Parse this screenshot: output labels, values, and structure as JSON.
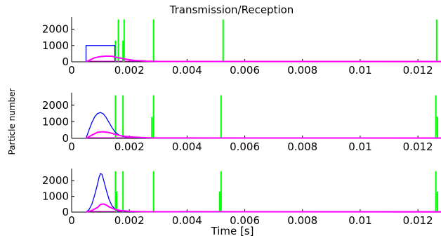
{
  "title": "Transmission/Reception",
  "xlabel": "Time [s]",
  "ylabel": "Particle number",
  "colors": {
    "blue": "#0000ff",
    "magenta": "#ff00ff",
    "green": "#00ff00",
    "axis": "#000000"
  },
  "chart_data": [
    {
      "type": "line",
      "xlim": [
        0,
        0.0128
      ],
      "ylim": [
        0,
        2500
      ],
      "xticks": [
        0,
        0.002,
        0.004,
        0.006,
        0.008,
        0.01,
        0.012
      ],
      "xtick_labels": [
        "0",
        "0.002",
        "0.004",
        "0.006",
        "0.008",
        "0.01",
        "0.012"
      ],
      "yticks": [
        0,
        1000,
        2000
      ],
      "ytick_labels": [
        "0",
        "1000",
        "2000"
      ],
      "series": [
        {
          "color": "#0000ff",
          "x": [
            0.0005,
            0.0005,
            0.0015,
            0.0015
          ],
          "y": [
            0,
            1000,
            1000,
            0
          ]
        },
        {
          "color": "#ff00ff",
          "x": [
            0.0005,
            0.0008,
            0.001,
            0.0012,
            0.0014,
            0.0016,
            0.0019,
            0.0022,
            0.0026,
            0.003,
            0.0128
          ],
          "y": [
            0,
            250,
            320,
            350,
            340,
            260,
            150,
            80,
            40,
            20,
            15
          ]
        }
      ],
      "spikes": [
        {
          "x": 0.00152,
          "height": 1300
        },
        {
          "x": 0.00162,
          "height": 2600
        },
        {
          "x": 0.00178,
          "height": 1300
        },
        {
          "x": 0.00182,
          "height": 2600
        },
        {
          "x": 0.00284,
          "height": 2600
        },
        {
          "x": 0.00525,
          "height": 2600
        },
        {
          "x": 0.01265,
          "height": 2600
        }
      ]
    },
    {
      "type": "line",
      "xlim": [
        0,
        0.0128
      ],
      "ylim": [
        0,
        2500
      ],
      "xticks": [
        0,
        0.002,
        0.004,
        0.006,
        0.008,
        0.01,
        0.012
      ],
      "xtick_labels": [
        "0",
        "0.002",
        "0.004",
        "0.006",
        "0.008",
        "0.01",
        "0.012"
      ],
      "yticks": [
        0,
        1000,
        2000
      ],
      "ytick_labels": [
        "0",
        "1000",
        "2000"
      ],
      "series": [
        {
          "color": "#0000ff",
          "x": [
            0.0005,
            0.0006,
            0.0007,
            0.0008,
            0.0009,
            0.001,
            0.0011,
            0.0012,
            0.0013,
            0.0014,
            0.0015,
            0.0016,
            0.0017,
            0.0019,
            0.0022,
            0.0026
          ],
          "y": [
            0,
            500,
            950,
            1300,
            1500,
            1560,
            1480,
            1250,
            950,
            650,
            400,
            250,
            150,
            80,
            40,
            20
          ]
        },
        {
          "color": "#ff00ff",
          "x": [
            0.0005,
            0.0007,
            0.0009,
            0.0011,
            0.0013,
            0.0015,
            0.0017,
            0.002,
            0.0024,
            0.0028,
            0.0128
          ],
          "y": [
            0,
            200,
            370,
            400,
            350,
            250,
            160,
            90,
            50,
            25,
            15
          ]
        }
      ],
      "spikes": [
        {
          "x": 0.00152,
          "height": 2600
        },
        {
          "x": 0.00178,
          "height": 2600
        },
        {
          "x": 0.00278,
          "height": 1300
        },
        {
          "x": 0.00284,
          "height": 2600
        },
        {
          "x": 0.00518,
          "height": 2600
        },
        {
          "x": 0.01262,
          "height": 2600
        },
        {
          "x": 0.01268,
          "height": 1300
        }
      ]
    },
    {
      "type": "line",
      "xlim": [
        0,
        0.0128
      ],
      "ylim": [
        0,
        2500
      ],
      "xticks": [
        0,
        0.002,
        0.004,
        0.006,
        0.008,
        0.01,
        0.012
      ],
      "xtick_labels": [
        "0",
        "0.002",
        "0.004",
        "0.006",
        "0.008",
        "0.01",
        "0.012"
      ],
      "yticks": [
        0,
        1000,
        2000
      ],
      "ytick_labels": [
        "0",
        "1000",
        "2000"
      ],
      "series": [
        {
          "color": "#0000ff",
          "x": [
            0.0005,
            0.0006,
            0.0007,
            0.0008,
            0.0009,
            0.00095,
            0.001,
            0.00105,
            0.0011,
            0.0012,
            0.0013,
            0.0014,
            0.0015,
            0.0016,
            0.0018,
            0.0021
          ],
          "y": [
            0,
            150,
            500,
            1100,
            1800,
            2200,
            2450,
            2400,
            2100,
            1400,
            800,
            400,
            200,
            100,
            50,
            20
          ]
        },
        {
          "color": "#ff00ff",
          "x": [
            0.0005,
            0.0007,
            0.0009,
            0.001,
            0.0011,
            0.0012,
            0.0013,
            0.0015,
            0.0017,
            0.002,
            0.0024,
            0.0128
          ],
          "y": [
            0,
            100,
            300,
            480,
            520,
            450,
            330,
            180,
            100,
            50,
            25,
            15
          ]
        }
      ],
      "spikes": [
        {
          "x": 0.00152,
          "height": 2600
        },
        {
          "x": 0.00156,
          "height": 1300
        },
        {
          "x": 0.00178,
          "height": 2600
        },
        {
          "x": 0.00284,
          "height": 2600
        },
        {
          "x": 0.00518,
          "height": 2600
        },
        {
          "x": 0.00513,
          "height": 1300
        },
        {
          "x": 0.01262,
          "height": 2600
        },
        {
          "x": 0.01268,
          "height": 1300
        }
      ]
    }
  ]
}
